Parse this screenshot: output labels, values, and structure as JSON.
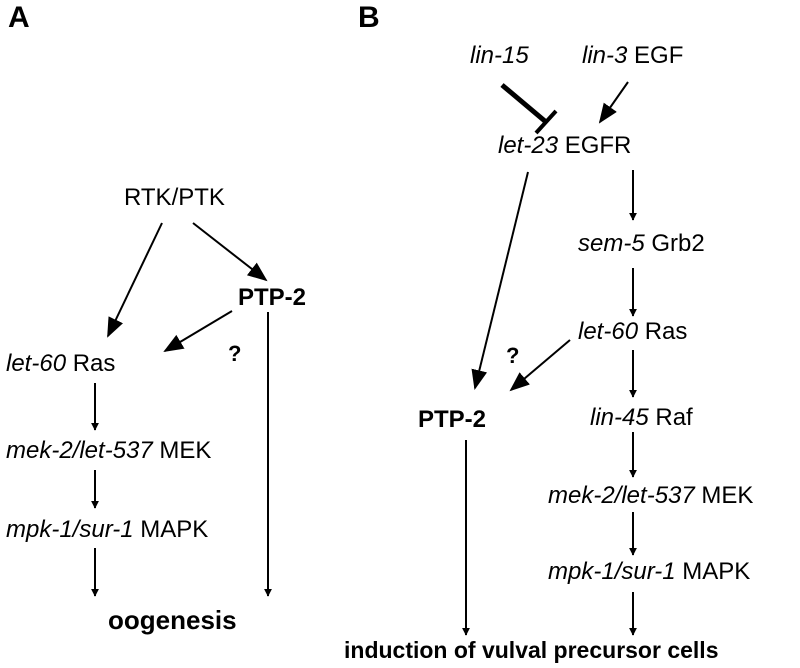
{
  "panel_a": {
    "letter": "A",
    "rtk": "RTK/PTK",
    "ptp2": "PTP-2",
    "question": "?",
    "ras_gene": "let-60",
    "ras_protein": "Ras",
    "mek_gene": "mek-2/let-537",
    "mek_protein": "MEK",
    "mapk_gene": "mpk-1/sur-1",
    "mapk_protein": "MAPK",
    "output": "oogenesis"
  },
  "panel_b": {
    "letter": "B",
    "lin15_gene": "lin-15",
    "lin3_gene": "lin-3",
    "lin3_protein": "EGF",
    "let23_gene": "let-23",
    "let23_protein": "EGFR",
    "sem5_gene": "sem-5",
    "sem5_protein": "Grb2",
    "ras_gene": "let-60",
    "ras_protein": "Ras",
    "question": "?",
    "ptp2": "PTP-2",
    "raf_gene": "lin-45",
    "raf_protein": "Raf",
    "mek_gene": "mek-2/let-537",
    "mek_protein": "MEK",
    "mapk_gene": "mpk-1/sur-1",
    "mapk_protein": "MAPK",
    "output": "induction of vulval precursor cells"
  }
}
